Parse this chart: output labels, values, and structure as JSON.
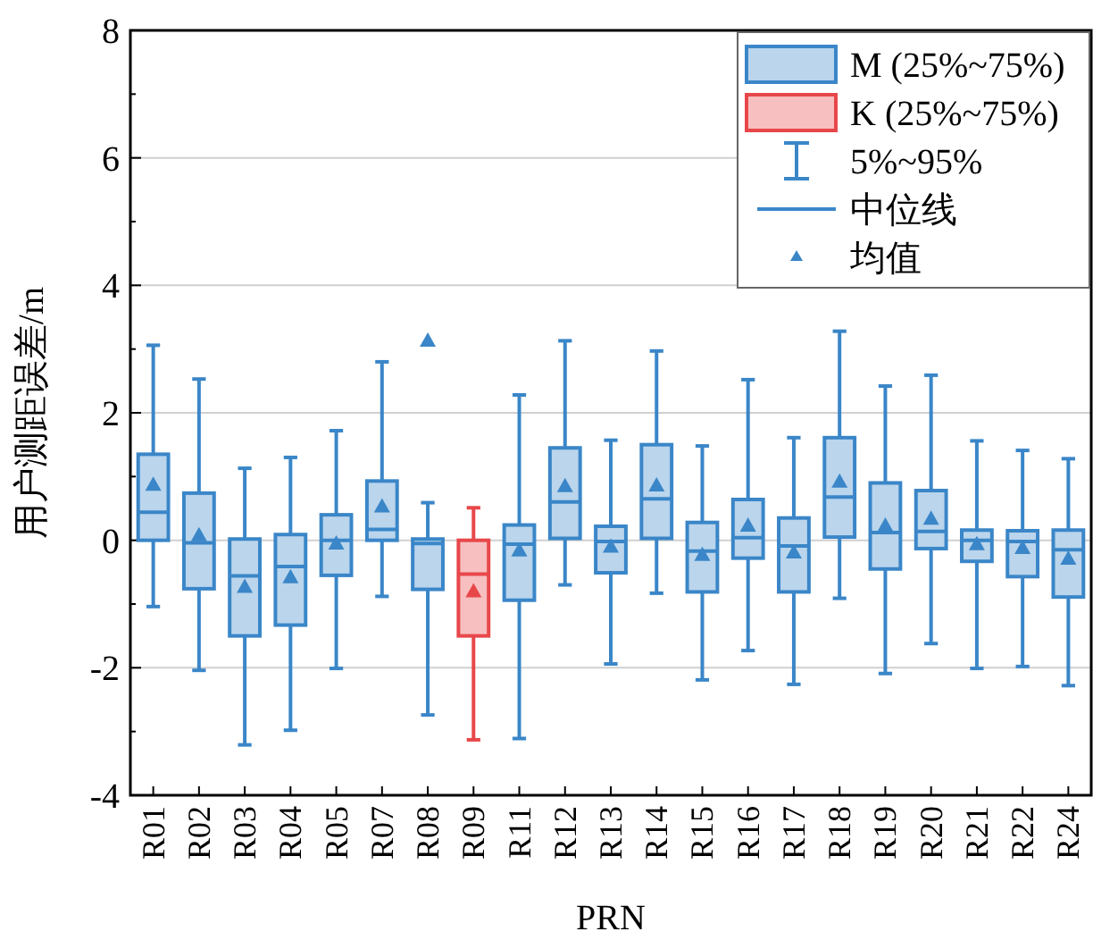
{
  "chart_data": {
    "type": "box",
    "xlabel": "PRN",
    "ylabel": "用户测距误差/m",
    "categories": [
      "R01",
      "R02",
      "R03",
      "R04",
      "R05",
      "R07",
      "R08",
      "R09",
      "R11",
      "R12",
      "R13",
      "R14",
      "R15",
      "R16",
      "R17",
      "R18",
      "R19",
      "R20",
      "R21",
      "R22",
      "R24"
    ],
    "ylim": [
      -4,
      8
    ],
    "yticks": [
      -4,
      -2,
      0,
      2,
      4,
      6,
      8
    ],
    "grid": "y",
    "legend": "top right",
    "annotations": [
      "5%~95%",
      "中位线",
      "均值"
    ],
    "series": [
      {
        "name": "M (25%~75%)",
        "color": "#3a86c8",
        "boxes": [
          {
            "low": -1.04,
            "q1": 0,
            "median": 0.44,
            "q3": 1.35,
            "high": 3.06,
            "mean": 0.86
          },
          {
            "low": -2.04,
            "q1": -0.76,
            "median": -0.04,
            "q3": 0.74,
            "high": 2.53,
            "mean": 0.07
          },
          {
            "low": -3.21,
            "q1": -1.5,
            "median": -0.56,
            "q3": 0.02,
            "high": 1.13,
            "mean": -0.74
          },
          {
            "low": -2.98,
            "q1": -1.33,
            "median": -0.41,
            "q3": 0.09,
            "high": 1.3,
            "mean": -0.59
          },
          {
            "low": -2.01,
            "q1": -0.55,
            "median": 0,
            "q3": 0.4,
            "high": 1.72,
            "mean": -0.06
          },
          {
            "low": -0.88,
            "q1": 0,
            "median": 0.17,
            "q3": 0.93,
            "high": 2.8,
            "mean": 0.52
          },
          {
            "low": -2.74,
            "q1": -0.77,
            "median": -0.05,
            "q3": 0.02,
            "high": 0.59,
            "mean": 3.12
          },
          null,
          {
            "low": -3.11,
            "q1": -0.94,
            "median": -0.06,
            "q3": 0.24,
            "high": 2.28,
            "mean": -0.17
          },
          {
            "low": -0.7,
            "q1": 0.03,
            "median": 0.6,
            "q3": 1.45,
            "high": 3.13,
            "mean": 0.84
          },
          {
            "low": -1.94,
            "q1": -0.51,
            "median": -0.02,
            "q3": 0.22,
            "high": 1.57,
            "mean": -0.11
          },
          {
            "low": -0.83,
            "q1": 0.03,
            "median": 0.65,
            "q3": 1.5,
            "high": 2.97,
            "mean": 0.85
          },
          {
            "low": -2.19,
            "q1": -0.81,
            "median": -0.17,
            "q3": 0.28,
            "high": 1.48,
            "mean": -0.24
          },
          {
            "low": -1.73,
            "q1": -0.28,
            "median": 0.04,
            "q3": 0.64,
            "high": 2.52,
            "mean": 0.22
          },
          {
            "low": -2.26,
            "q1": -0.81,
            "median": -0.09,
            "q3": 0.35,
            "high": 1.61,
            "mean": -0.2
          },
          {
            "low": -0.91,
            "q1": 0.05,
            "median": 0.68,
            "q3": 1.61,
            "high": 3.28,
            "mean": 0.91
          },
          {
            "low": -2.09,
            "q1": -0.45,
            "median": 0.12,
            "q3": 0.9,
            "high": 2.42,
            "mean": 0.22
          },
          {
            "low": -1.62,
            "q1": -0.13,
            "median": 0.14,
            "q3": 0.78,
            "high": 2.59,
            "mean": 0.33
          },
          {
            "low": -2.01,
            "q1": -0.33,
            "median": 0,
            "q3": 0.16,
            "high": 1.56,
            "mean": -0.07
          },
          {
            "low": -1.98,
            "q1": -0.57,
            "median": -0.02,
            "q3": 0.15,
            "high": 1.41,
            "mean": -0.13
          },
          {
            "low": -2.28,
            "q1": -0.89,
            "median": -0.15,
            "q3": 0.16,
            "high": 1.28,
            "mean": -0.3
          }
        ]
      },
      {
        "name": "K (25%~75%)",
        "color": "#e8474a",
        "boxes": [
          null,
          null,
          null,
          null,
          null,
          null,
          null,
          {
            "low": -3.13,
            "q1": -1.5,
            "median": -0.53,
            "q3": 0,
            "high": 0.51,
            "mean": -0.81
          },
          null,
          null,
          null,
          null,
          null,
          null,
          null,
          null,
          null,
          null,
          null,
          null,
          null
        ]
      }
    ]
  }
}
